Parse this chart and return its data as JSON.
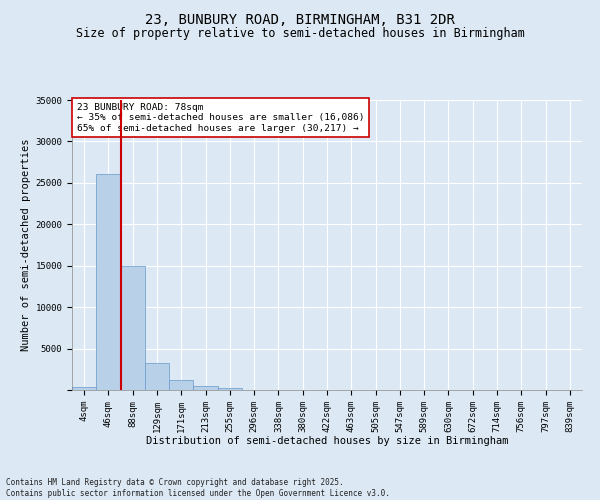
{
  "title": "23, BUNBURY ROAD, BIRMINGHAM, B31 2DR",
  "subtitle": "Size of property relative to semi-detached houses in Birmingham",
  "xlabel": "Distribution of semi-detached houses by size in Birmingham",
  "ylabel": "Number of semi-detached properties",
  "bin_labels": [
    "4sqm",
    "46sqm",
    "88sqm",
    "129sqm",
    "171sqm",
    "213sqm",
    "255sqm",
    "296sqm",
    "338sqm",
    "380sqm",
    "422sqm",
    "463sqm",
    "505sqm",
    "547sqm",
    "589sqm",
    "630sqm",
    "672sqm",
    "714sqm",
    "756sqm",
    "797sqm",
    "839sqm"
  ],
  "bar_values": [
    350,
    26100,
    15000,
    3200,
    1200,
    450,
    200,
    50,
    0,
    0,
    0,
    0,
    0,
    0,
    0,
    0,
    0,
    0,
    0,
    0,
    0
  ],
  "bar_color": "#b8d0e8",
  "bar_edgecolor": "#6699cc",
  "annotation_text": "23 BUNBURY ROAD: 78sqm\n← 35% of semi-detached houses are smaller (16,086)\n65% of semi-detached houses are larger (30,217) →",
  "ylim": [
    0,
    35000
  ],
  "yticks": [
    0,
    5000,
    10000,
    15000,
    20000,
    25000,
    30000,
    35000
  ],
  "vline_color": "#cc0000",
  "footer": "Contains HM Land Registry data © Crown copyright and database right 2025.\nContains public sector information licensed under the Open Government Licence v3.0.",
  "bg_color": "#dce8f4",
  "plot_bg_color": "#dce8f4",
  "grid_color": "#ffffff",
  "title_fontsize": 10,
  "subtitle_fontsize": 8.5,
  "axis_label_fontsize": 7.5,
  "tick_fontsize": 6.5,
  "footer_fontsize": 5.5,
  "annot_fontsize": 6.8
}
